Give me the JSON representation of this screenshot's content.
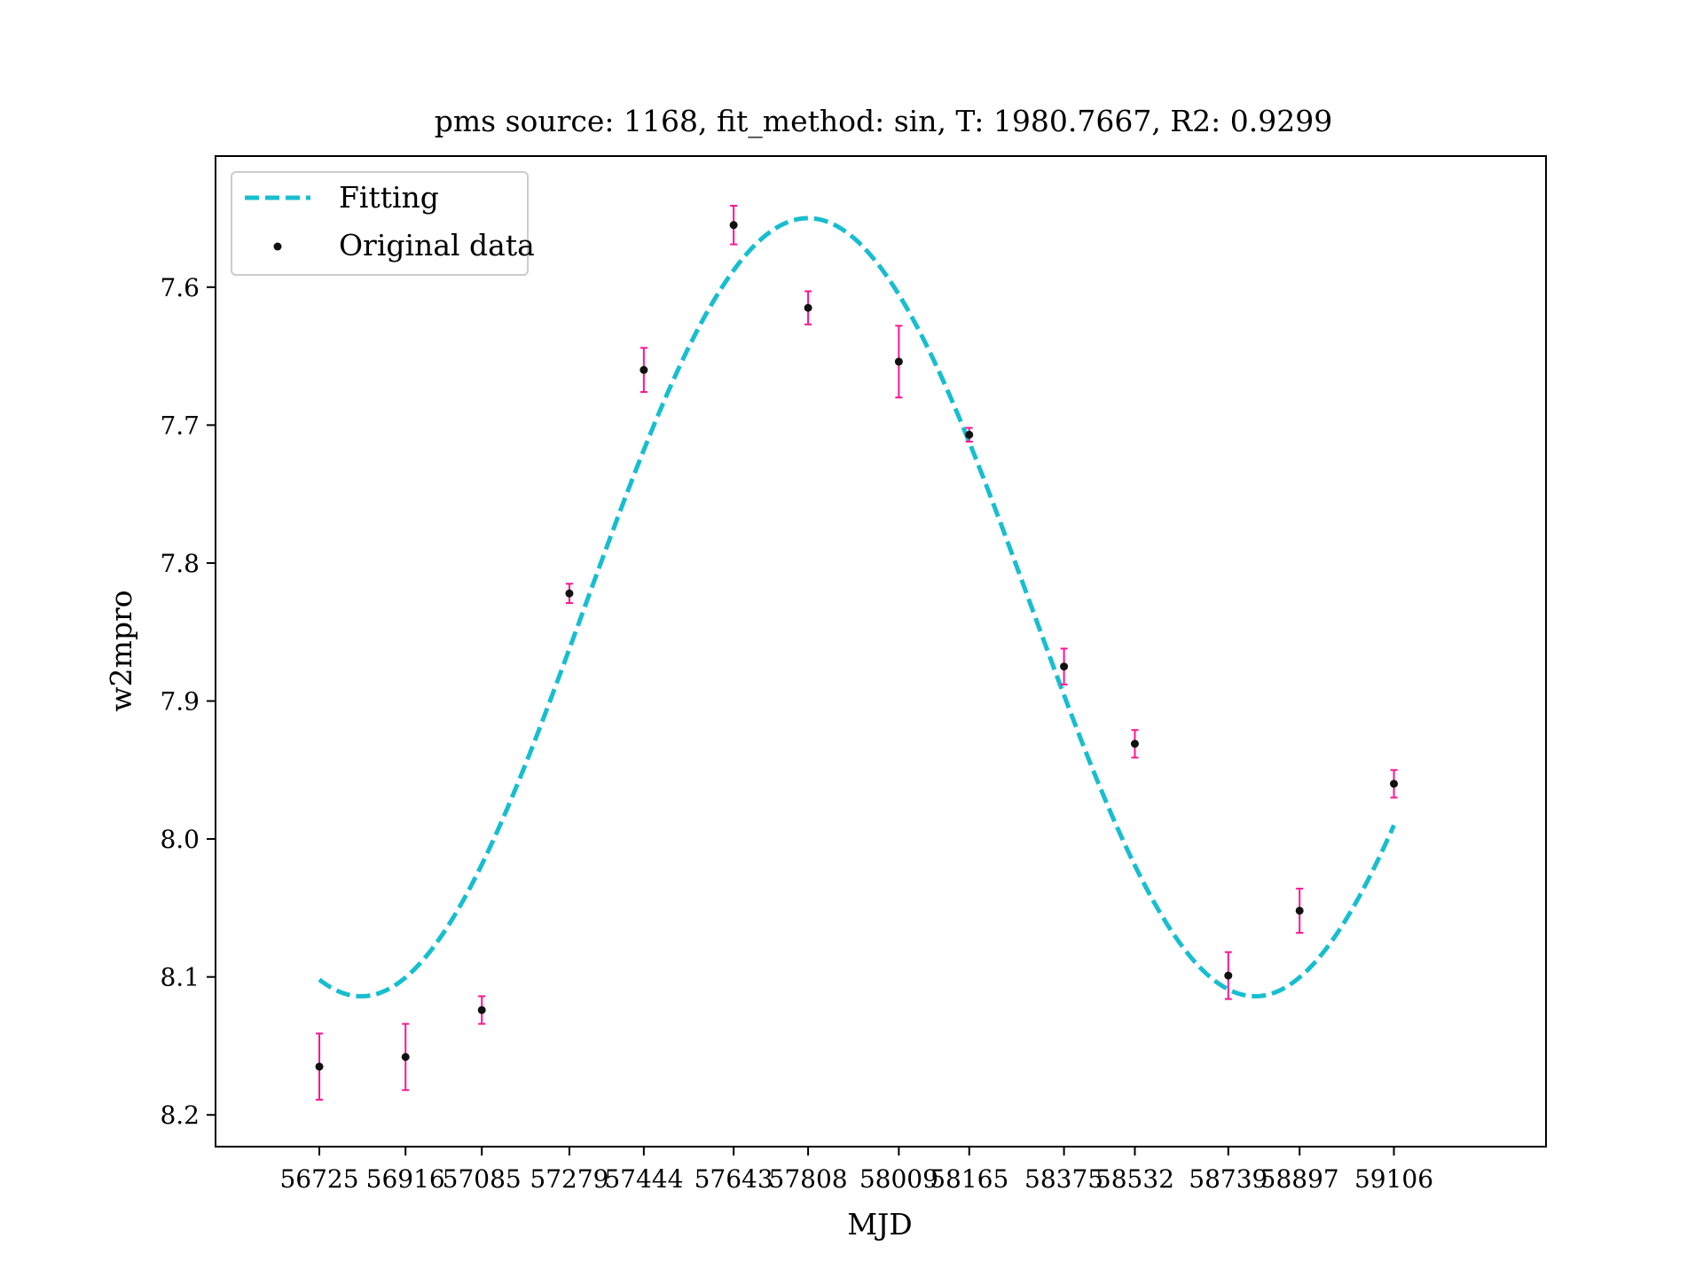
{
  "chart_data": {
    "type": "scatter",
    "title": "pms source: 1168,  fit_method: sin,  T: 1980.7667,  R2: 0.9299",
    "xlabel": "MJD",
    "ylabel": "w2mpro",
    "y_inverted": true,
    "ylim": [
      8.223,
      7.505
    ],
    "xlim": [
      56495,
      59443
    ],
    "x_ticks": [
      56725,
      56916,
      57085,
      57279,
      57444,
      57643,
      57808,
      58009,
      58165,
      58375,
      58532,
      58739,
      58897,
      59106
    ],
    "y_ticks": [
      7.6,
      7.7,
      7.8,
      7.9,
      8.0,
      8.1,
      8.2
    ],
    "y_tick_labels": [
      "7.6",
      "7.7",
      "7.8",
      "7.9",
      "8.0",
      "8.1",
      "8.2"
    ],
    "grid": false,
    "legend_position": "top-left",
    "series": [
      {
        "name": "Fitting",
        "kind": "line",
        "style": "dashed",
        "color": "#17becf",
        "model": "sin",
        "period": 1980.7667,
        "mean": 7.832,
        "amplitude": 0.282,
        "peak_x": 57808
      },
      {
        "name": "Original data",
        "kind": "errorbar",
        "color": "#111111",
        "error_color": "#ff1493",
        "x": [
          56725,
          56916,
          57085,
          57279,
          57444,
          57643,
          57808,
          58009,
          58165,
          58375,
          58532,
          58739,
          58897,
          59106
        ],
        "y": [
          8.165,
          8.158,
          8.124,
          7.822,
          7.66,
          7.555,
          7.615,
          7.654,
          7.707,
          7.875,
          7.931,
          8.099,
          8.052,
          7.96
        ],
        "yerr": [
          0.024,
          0.024,
          0.01,
          0.007,
          0.016,
          0.014,
          0.012,
          0.026,
          0.005,
          0.013,
          0.01,
          0.017,
          0.016,
          0.01
        ]
      }
    ]
  }
}
